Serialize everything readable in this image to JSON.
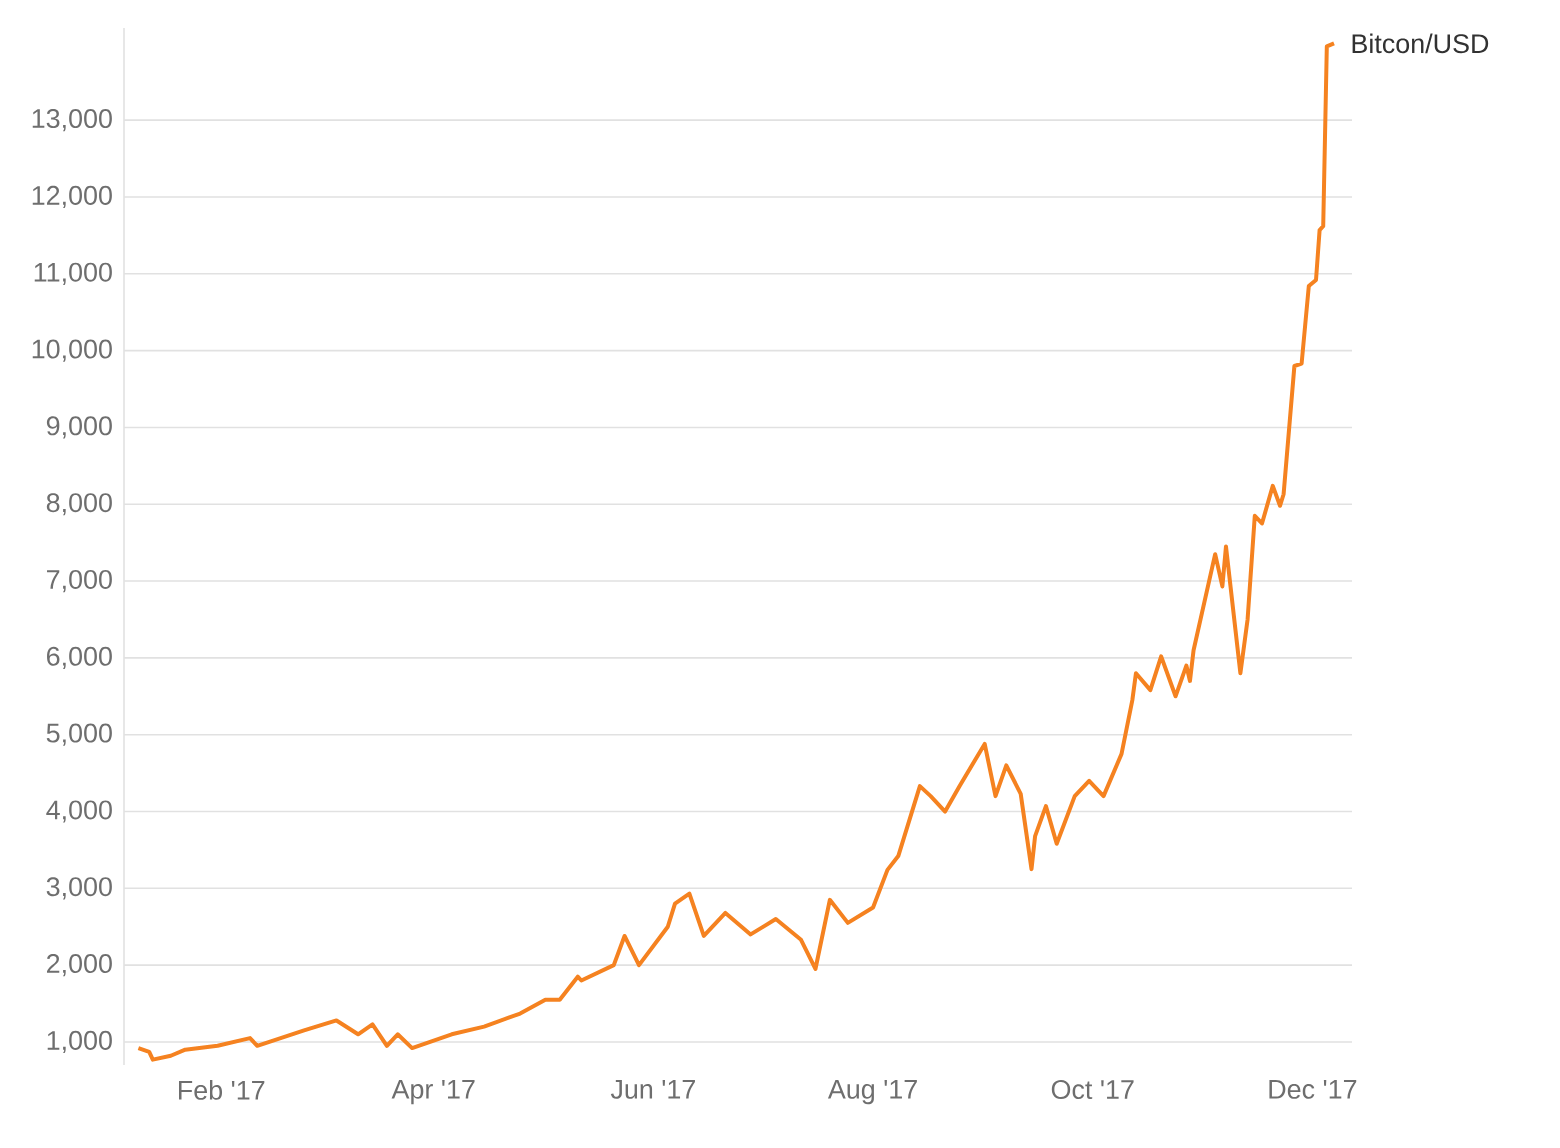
{
  "chart_data": {
    "type": "line",
    "x": [
      "2017-01-09",
      "2017-01-12",
      "2017-01-13",
      "2017-01-18",
      "2017-01-22",
      "2017-01-31",
      "2017-02-09",
      "2017-02-11",
      "2017-02-24",
      "2017-03-05",
      "2017-03-11",
      "2017-03-15",
      "2017-03-19",
      "2017-03-22",
      "2017-03-26",
      "2017-04-06",
      "2017-04-15",
      "2017-04-25",
      "2017-05-02",
      "2017-05-06",
      "2017-05-11",
      "2017-05-12",
      "2017-05-21",
      "2017-05-24",
      "2017-05-28",
      "2017-06-05",
      "2017-06-07",
      "2017-06-11",
      "2017-06-15",
      "2017-06-21",
      "2017-06-28",
      "2017-07-05",
      "2017-07-12",
      "2017-07-16",
      "2017-07-20",
      "2017-07-25",
      "2017-08-01",
      "2017-08-05",
      "2017-08-08",
      "2017-08-14",
      "2017-08-17",
      "2017-08-21",
      "2017-08-25",
      "2017-09-01",
      "2017-09-04",
      "2017-09-07",
      "2017-09-11",
      "2017-09-14",
      "2017-09-15",
      "2017-09-18",
      "2017-09-21",
      "2017-09-26",
      "2017-09-30",
      "2017-10-04",
      "2017-10-09",
      "2017-10-12",
      "2017-10-13",
      "2017-10-17",
      "2017-10-20",
      "2017-10-24",
      "2017-10-27",
      "2017-10-28",
      "2017-10-29",
      "2017-11-04",
      "2017-11-06",
      "2017-11-07",
      "2017-11-11",
      "2017-11-13",
      "2017-11-15",
      "2017-11-17",
      "2017-11-20",
      "2017-11-22",
      "2017-11-23",
      "2017-11-26",
      "2017-11-28",
      "2017-11-30",
      "2017-12-02",
      "2017-12-03",
      "2017-12-04",
      "2017-12-05",
      "2017-12-07"
    ],
    "series": [
      {
        "name": "Bitcon/USD",
        "color": "#f58220",
        "values": [
          920,
          870,
          770,
          820,
          900,
          950,
          1050,
          950,
          1150,
          1280,
          1100,
          1230,
          950,
          1100,
          920,
          1100,
          1200,
          1370,
          1550,
          1550,
          1850,
          1800,
          2000,
          2380,
          2000,
          2500,
          2800,
          2930,
          2380,
          2680,
          2400,
          2600,
          2330,
          1950,
          2850,
          2550,
          2750,
          3240,
          3420,
          4330,
          4200,
          4000,
          4330,
          4880,
          4200,
          4600,
          4230,
          3250,
          3680,
          4070,
          3580,
          4200,
          4400,
          4200,
          4750,
          5450,
          5800,
          5580,
          6020,
          5500,
          5900,
          5700,
          6100,
          7350,
          6930,
          7450,
          5800,
          6500,
          7850,
          7750,
          8240,
          7980,
          8130,
          9800,
          9830,
          10840,
          10920,
          11570,
          11620,
          13960,
          14000
        ]
      }
    ],
    "xlim": [
      "2017-01-05",
      "2017-12-12"
    ],
    "ylim": [
      700,
      14200
    ],
    "xticks": [
      {
        "value": "2017-02-01",
        "label": "Feb '17"
      },
      {
        "value": "2017-04-01",
        "label": "Apr '17"
      },
      {
        "value": "2017-06-01",
        "label": "Jun '17"
      },
      {
        "value": "2017-08-01",
        "label": "Aug '17"
      },
      {
        "value": "2017-10-01",
        "label": "Oct '17"
      },
      {
        "value": "2017-12-01",
        "label": "Dec '17"
      }
    ],
    "yticks": [
      {
        "value": 1000,
        "label": "1,000"
      },
      {
        "value": 2000,
        "label": "2,000"
      },
      {
        "value": 3000,
        "label": "3,000"
      },
      {
        "value": 4000,
        "label": "4,000"
      },
      {
        "value": 5000,
        "label": "5,000"
      },
      {
        "value": 6000,
        "label": "6,000"
      },
      {
        "value": 7000,
        "label": "7,000"
      },
      {
        "value": 8000,
        "label": "8,000"
      },
      {
        "value": 9000,
        "label": "9,000"
      },
      {
        "value": 10000,
        "label": "10,000"
      },
      {
        "value": 11000,
        "label": "11,000"
      },
      {
        "value": 12000,
        "label": "12,000"
      },
      {
        "value": 13000,
        "label": "13,000"
      }
    ],
    "grid": "y"
  }
}
